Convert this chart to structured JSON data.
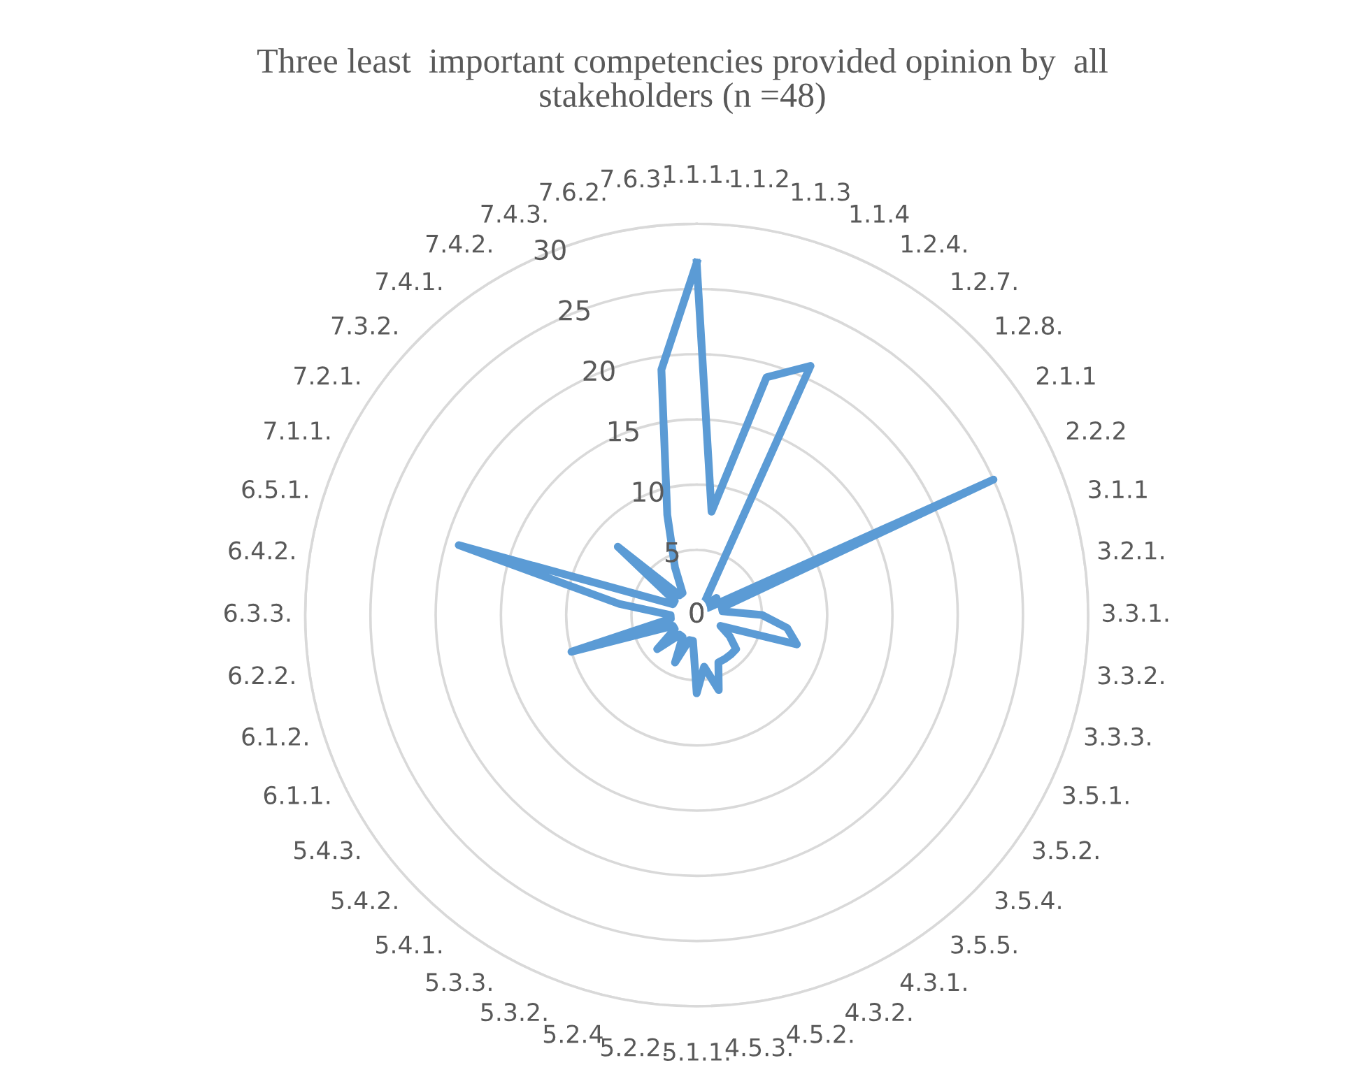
{
  "chart_data": {
    "type": "radar",
    "title": "Three least  important competencies provided opinion by  all stakeholders (n =48)",
    "categories": [
      "1.1.1.",
      "1.1.2",
      "1.1.3",
      "1.1.4",
      "1.2.4.",
      "1.2.7.",
      "1.2.8.",
      "2.1.1",
      "2.2.2",
      "3.1.1",
      "3.2.1.",
      "3.3.1.",
      "3.3.2.",
      "3.3.3.",
      "3.5.1.",
      "3.5.2.",
      "3.5.4.",
      "3.5.5.",
      "4.3.1.",
      "4.3.2.",
      "4.5.2.",
      "4.5.3.",
      "5.1.1.",
      "5.2.2.",
      "5.2.4",
      "5.3.2.",
      "5.3.3.",
      "5.4.1.",
      "5.4.2.",
      "5.4.3.",
      "6.1.1.",
      "6.1.2.",
      "6.2.2.",
      "6.3.3.",
      "6.4.2.",
      "6.5.1.",
      "7.1.1.",
      "7.2.1.",
      "7.3.2.",
      "7.4.1.",
      "7.4.2.",
      "7.4.3.",
      "7.6.2.",
      "7.6.3."
    ],
    "series": [
      {
        "color": "#5b9bd5",
        "values": [
          27,
          8,
          19,
          21,
          1,
          1,
          2,
          1,
          25,
          2,
          2,
          5,
          7,
          8,
          2,
          3,
          4,
          4,
          4,
          4,
          6,
          4,
          6,
          2,
          2,
          4,
          2,
          2,
          4,
          2,
          2,
          10,
          2,
          2,
          6,
          19,
          2,
          2,
          8,
          2,
          2,
          4,
          8,
          19
        ]
      }
    ],
    "ylim": [
      0,
      30
    ],
    "yticks": [
      0,
      5,
      10,
      15,
      20,
      25,
      30
    ],
    "grid": true,
    "marker": "none",
    "line_style": "solid"
  }
}
